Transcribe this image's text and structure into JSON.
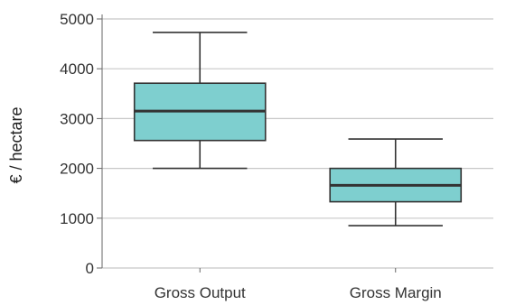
{
  "chart_data": {
    "type": "box",
    "ylabel": "€ / hectare",
    "xlabel": "",
    "title": "",
    "ylim": [
      0,
      5000
    ],
    "yticks": [
      0,
      1000,
      2000,
      3000,
      4000,
      5000
    ],
    "grid": "horizontal",
    "box_color": "#7ecfcf",
    "median_color": "#333333",
    "categories": [
      "Gross Output",
      "Gross Margin"
    ],
    "boxes": [
      {
        "category": "Gross Output",
        "whisker_low": 2000,
        "q1": 2560,
        "median": 3150,
        "q3": 3710,
        "whisker_high": 4730
      },
      {
        "category": "Gross Margin",
        "whisker_low": 850,
        "q1": 1330,
        "median": 1660,
        "q3": 2000,
        "whisker_high": 2590
      }
    ]
  }
}
